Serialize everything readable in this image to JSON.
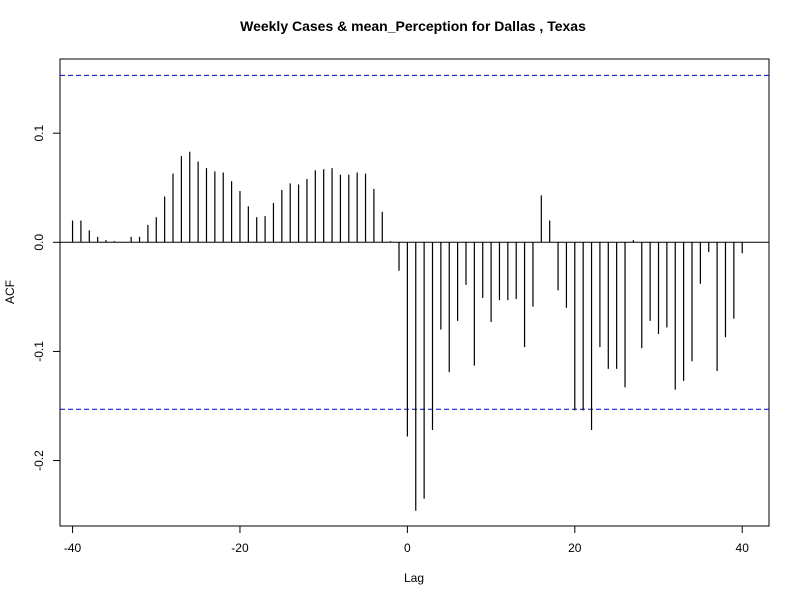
{
  "chart_data": {
    "type": "bar",
    "title": "Weekly Cases & mean_Perception for Dallas , Texas",
    "xlabel": "Lag",
    "ylabel": "ACF",
    "xlim": [
      -41.5,
      43.2
    ],
    "ylim": [
      -0.26,
      0.168
    ],
    "x_ticks": [
      -40,
      -20,
      0,
      20,
      40
    ],
    "x_tick_labels": [
      "-40",
      "-20",
      "0",
      "20",
      "40"
    ],
    "y_ticks": [
      -0.2,
      -0.1,
      0.0,
      0.1
    ],
    "y_tick_labels": [
      "-0.2",
      "-0.1",
      "0.0",
      "0.1"
    ],
    "confidence_bounds": [
      0.153,
      -0.153
    ],
    "zero_line": 0.0,
    "grid": false,
    "colors": {
      "bars": "#000000",
      "bounds": "#0000cc",
      "axes": "#000000"
    },
    "x": [
      -40,
      -39,
      -38,
      -37,
      -36,
      -35,
      -34,
      -33,
      -32,
      -31,
      -30,
      -29,
      -28,
      -27,
      -26,
      -25,
      -24,
      -23,
      -22,
      -21,
      -20,
      -19,
      -18,
      -17,
      -16,
      -15,
      -14,
      -13,
      -12,
      -11,
      -10,
      -9,
      -8,
      -7,
      -6,
      -5,
      -4,
      -3,
      -2,
      -1,
      0,
      1,
      2,
      3,
      4,
      5,
      6,
      7,
      8,
      9,
      10,
      11,
      12,
      13,
      14,
      15,
      16,
      17,
      18,
      19,
      20,
      21,
      22,
      23,
      24,
      25,
      26,
      27,
      28,
      29,
      30,
      31,
      32,
      33,
      34,
      35,
      36,
      37,
      38,
      39,
      40
    ],
    "values": [
      0.02,
      0.02,
      0.011,
      0.005,
      0.002,
      0.001,
      0.0,
      0.005,
      0.005,
      0.016,
      0.023,
      0.042,
      0.063,
      0.079,
      0.083,
      0.074,
      0.068,
      0.065,
      0.064,
      0.056,
      0.047,
      0.033,
      0.023,
      0.024,
      0.036,
      0.048,
      0.054,
      0.053,
      0.058,
      0.066,
      0.067,
      0.068,
      0.062,
      0.062,
      0.064,
      0.063,
      0.049,
      0.028,
      0.001,
      -0.026,
      -0.178,
      -0.246,
      -0.235,
      -0.172,
      -0.08,
      -0.119,
      -0.072,
      -0.039,
      -0.113,
      -0.051,
      -0.073,
      -0.053,
      -0.053,
      -0.052,
      -0.096,
      -0.059,
      0.043,
      0.02,
      -0.044,
      -0.06,
      -0.154,
      -0.154,
      -0.172,
      -0.096,
      -0.116,
      -0.116,
      -0.133,
      0.002,
      -0.097,
      -0.072,
      -0.084,
      -0.078,
      -0.135,
      -0.127,
      -0.109,
      -0.038,
      -0.009,
      -0.118,
      -0.087,
      -0.07,
      -0.01
    ]
  }
}
